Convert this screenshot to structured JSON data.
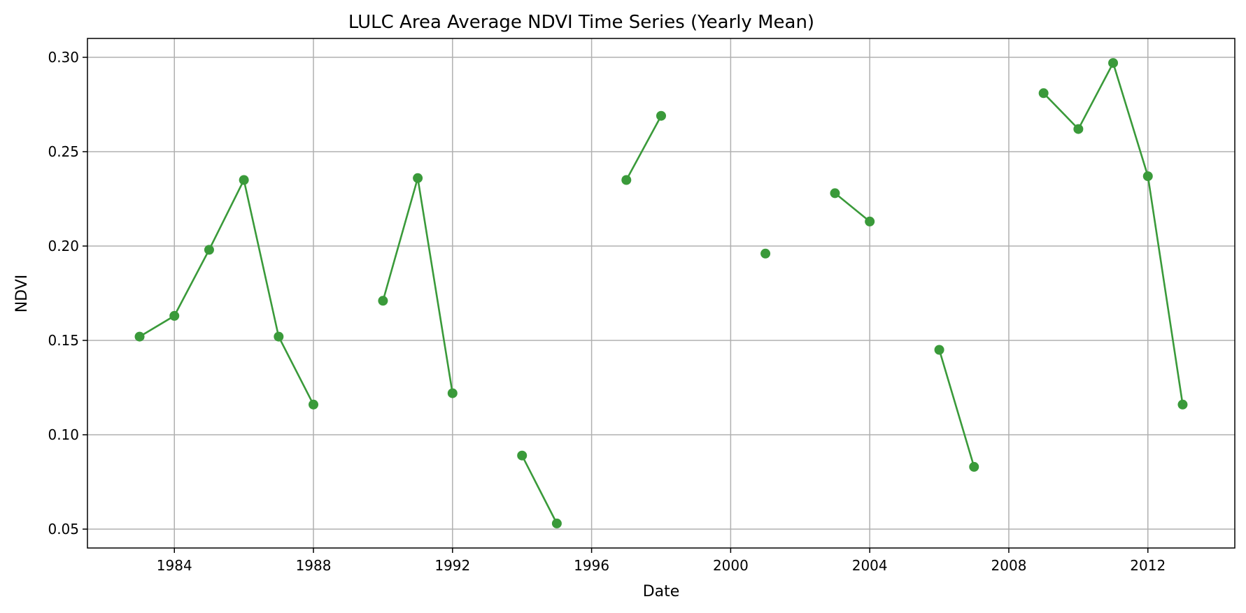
{
  "chart_data": {
    "type": "line",
    "title": "LULC Area Average NDVI Time Series (Yearly Mean)",
    "xlabel": "Date",
    "ylabel": "NDVI",
    "xlim": [
      1981.5,
      2014.5
    ],
    "ylim": [
      0.04,
      0.31
    ],
    "xticks": [
      1984,
      1988,
      1992,
      1996,
      2000,
      2004,
      2008,
      2012
    ],
    "yticks": [
      0.05,
      0.1,
      0.15,
      0.2,
      0.25,
      0.3
    ],
    "grid": true,
    "color": "#3a9a3a",
    "series": [
      {
        "points": [
          {
            "x": 1983,
            "y": 0.152
          },
          {
            "x": 1984,
            "y": 0.163
          },
          {
            "x": 1985,
            "y": 0.198
          },
          {
            "x": 1986,
            "y": 0.235
          },
          {
            "x": 1987,
            "y": 0.152
          },
          {
            "x": 1988,
            "y": 0.116
          },
          {
            "x": 1989,
            "y": null
          },
          {
            "x": 1990,
            "y": 0.171
          },
          {
            "x": 1991,
            "y": 0.236
          },
          {
            "x": 1992,
            "y": 0.122
          },
          {
            "x": 1993,
            "y": null
          },
          {
            "x": 1994,
            "y": 0.089
          },
          {
            "x": 1995,
            "y": 0.053
          },
          {
            "x": 1996,
            "y": null
          },
          {
            "x": 1997,
            "y": 0.235
          },
          {
            "x": 1998,
            "y": 0.269
          },
          {
            "x": 1999,
            "y": null
          },
          {
            "x": 2000,
            "y": null
          },
          {
            "x": 2001,
            "y": 0.196
          },
          {
            "x": 2002,
            "y": null
          },
          {
            "x": 2003,
            "y": 0.228
          },
          {
            "x": 2004,
            "y": 0.213
          },
          {
            "x": 2005,
            "y": null
          },
          {
            "x": 2006,
            "y": 0.145
          },
          {
            "x": 2007,
            "y": 0.083
          },
          {
            "x": 2008,
            "y": null
          },
          {
            "x": 2009,
            "y": 0.281
          },
          {
            "x": 2010,
            "y": 0.262
          },
          {
            "x": 2011,
            "y": 0.297
          },
          {
            "x": 2012,
            "y": 0.237
          },
          {
            "x": 2013,
            "y": 0.116
          }
        ]
      }
    ]
  }
}
